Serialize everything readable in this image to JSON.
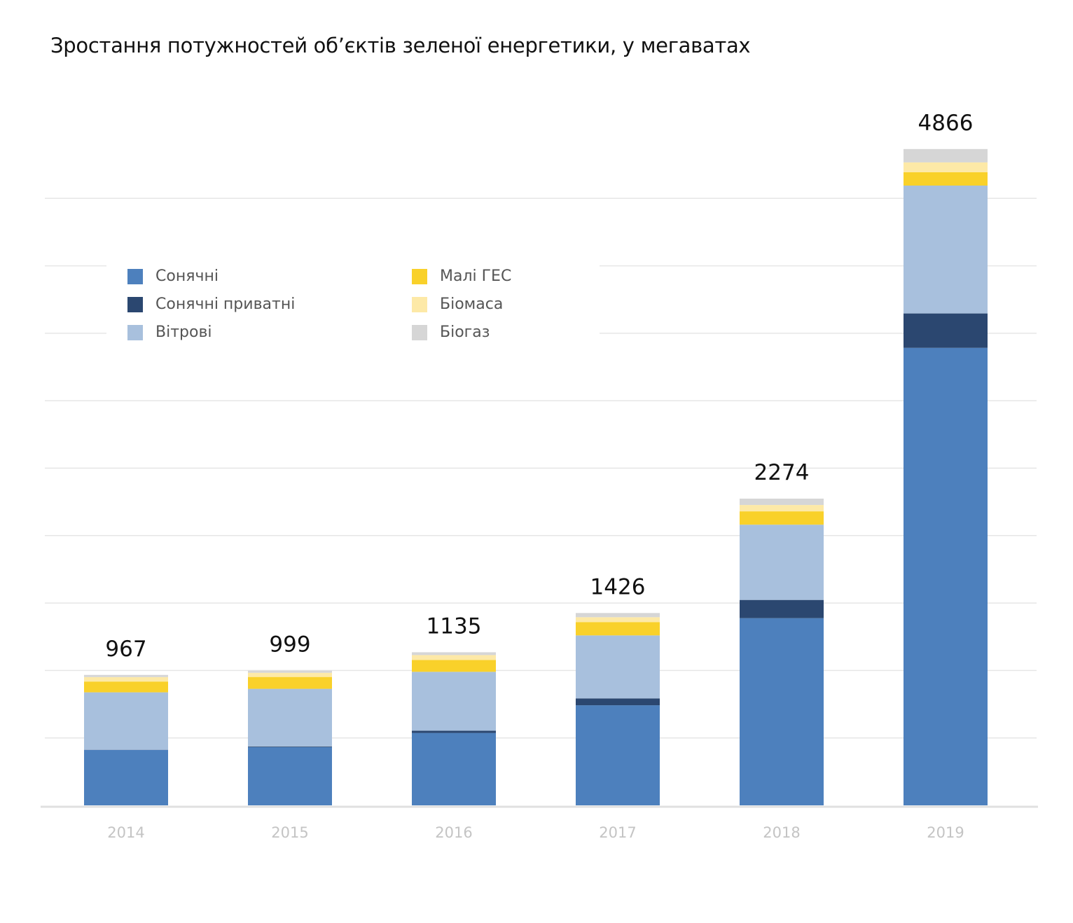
{
  "chart_data": {
    "type": "bar",
    "stacked": true,
    "title": "Зростання потужностей об’єктів зеленої енергетики, у мегаватах",
    "categories": [
      "2014",
      "2015",
      "2016",
      "2017",
      "2018",
      "2019"
    ],
    "totals": [
      967,
      999,
      1135,
      1426,
      2274,
      4866
    ],
    "ylim": [
      0,
      5000
    ],
    "grid": true,
    "legend_position": "top-left",
    "series": [
      {
        "name": "Сонячні",
        "color": "#4d80bd",
        "values": [
          411,
          432,
          537,
          742,
          1388,
          3392
        ]
      },
      {
        "name": "Сонячні приватні",
        "color": "#2b4770",
        "values": [
          1,
          5,
          16,
          51,
          135,
          255
        ]
      },
      {
        "name": "Вітрові",
        "color": "#a8c0dd",
        "values": [
          426,
          427,
          437,
          467,
          558,
          948
        ]
      },
      {
        "name": "Малі ГЕС",
        "color": "#f9d12a",
        "values": [
          80,
          88,
          88,
          99,
          99,
          99
        ]
      },
      {
        "name": "Біомаса",
        "color": "#fde9a7",
        "values": [
          33,
          31,
          36,
          36,
          47,
          73
        ]
      },
      {
        "name": "Біогаз",
        "color": "#d6d6d6",
        "values": [
          16,
          16,
          21,
          31,
          47,
          99
        ]
      }
    ]
  }
}
